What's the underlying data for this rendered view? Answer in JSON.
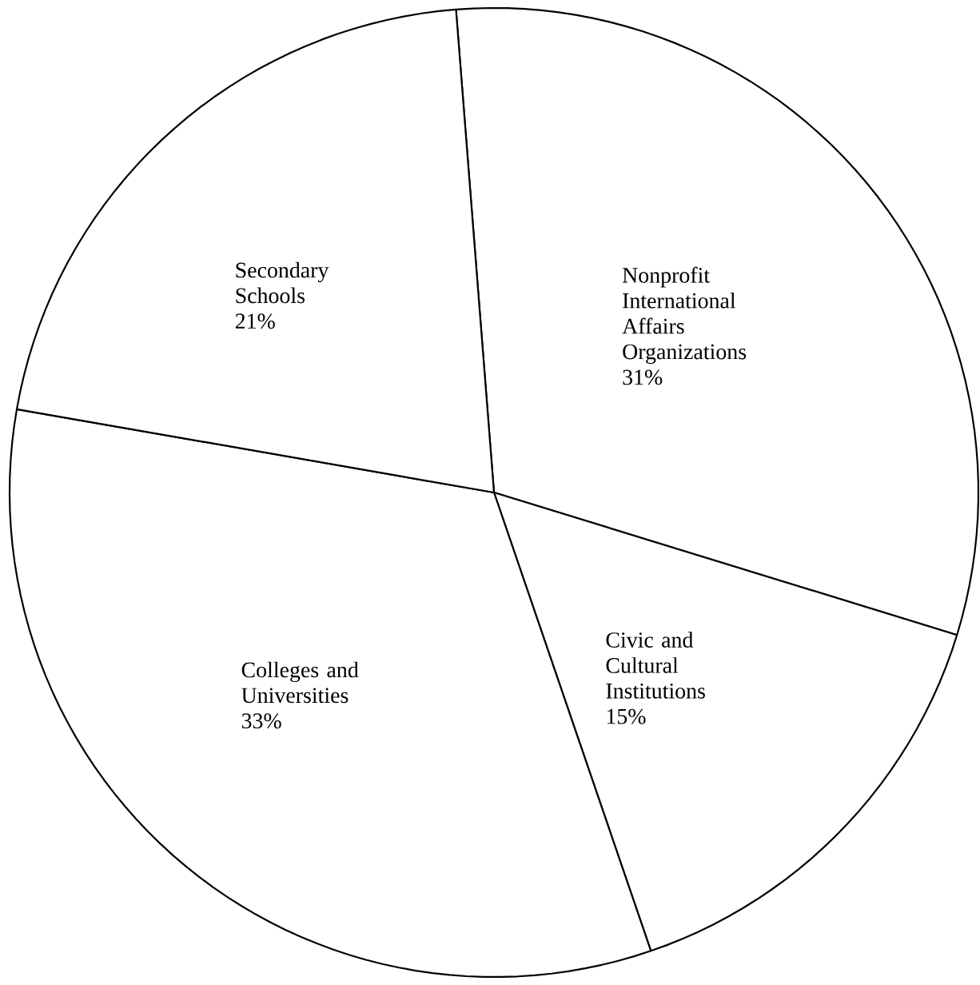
{
  "chart_data": {
    "type": "pie",
    "categories": [
      "Nonprofit International Affairs Organizations",
      "Civic and Cultural Institutions",
      "Colleges and Universities",
      "Secondary Schools"
    ],
    "values": [
      31,
      15,
      33,
      21
    ],
    "value_labels": [
      "31%",
      "15%",
      "33%",
      "21%"
    ],
    "colors": [
      "#ffffff",
      "#ffffff",
      "#ffffff",
      "#ffffff"
    ]
  }
}
